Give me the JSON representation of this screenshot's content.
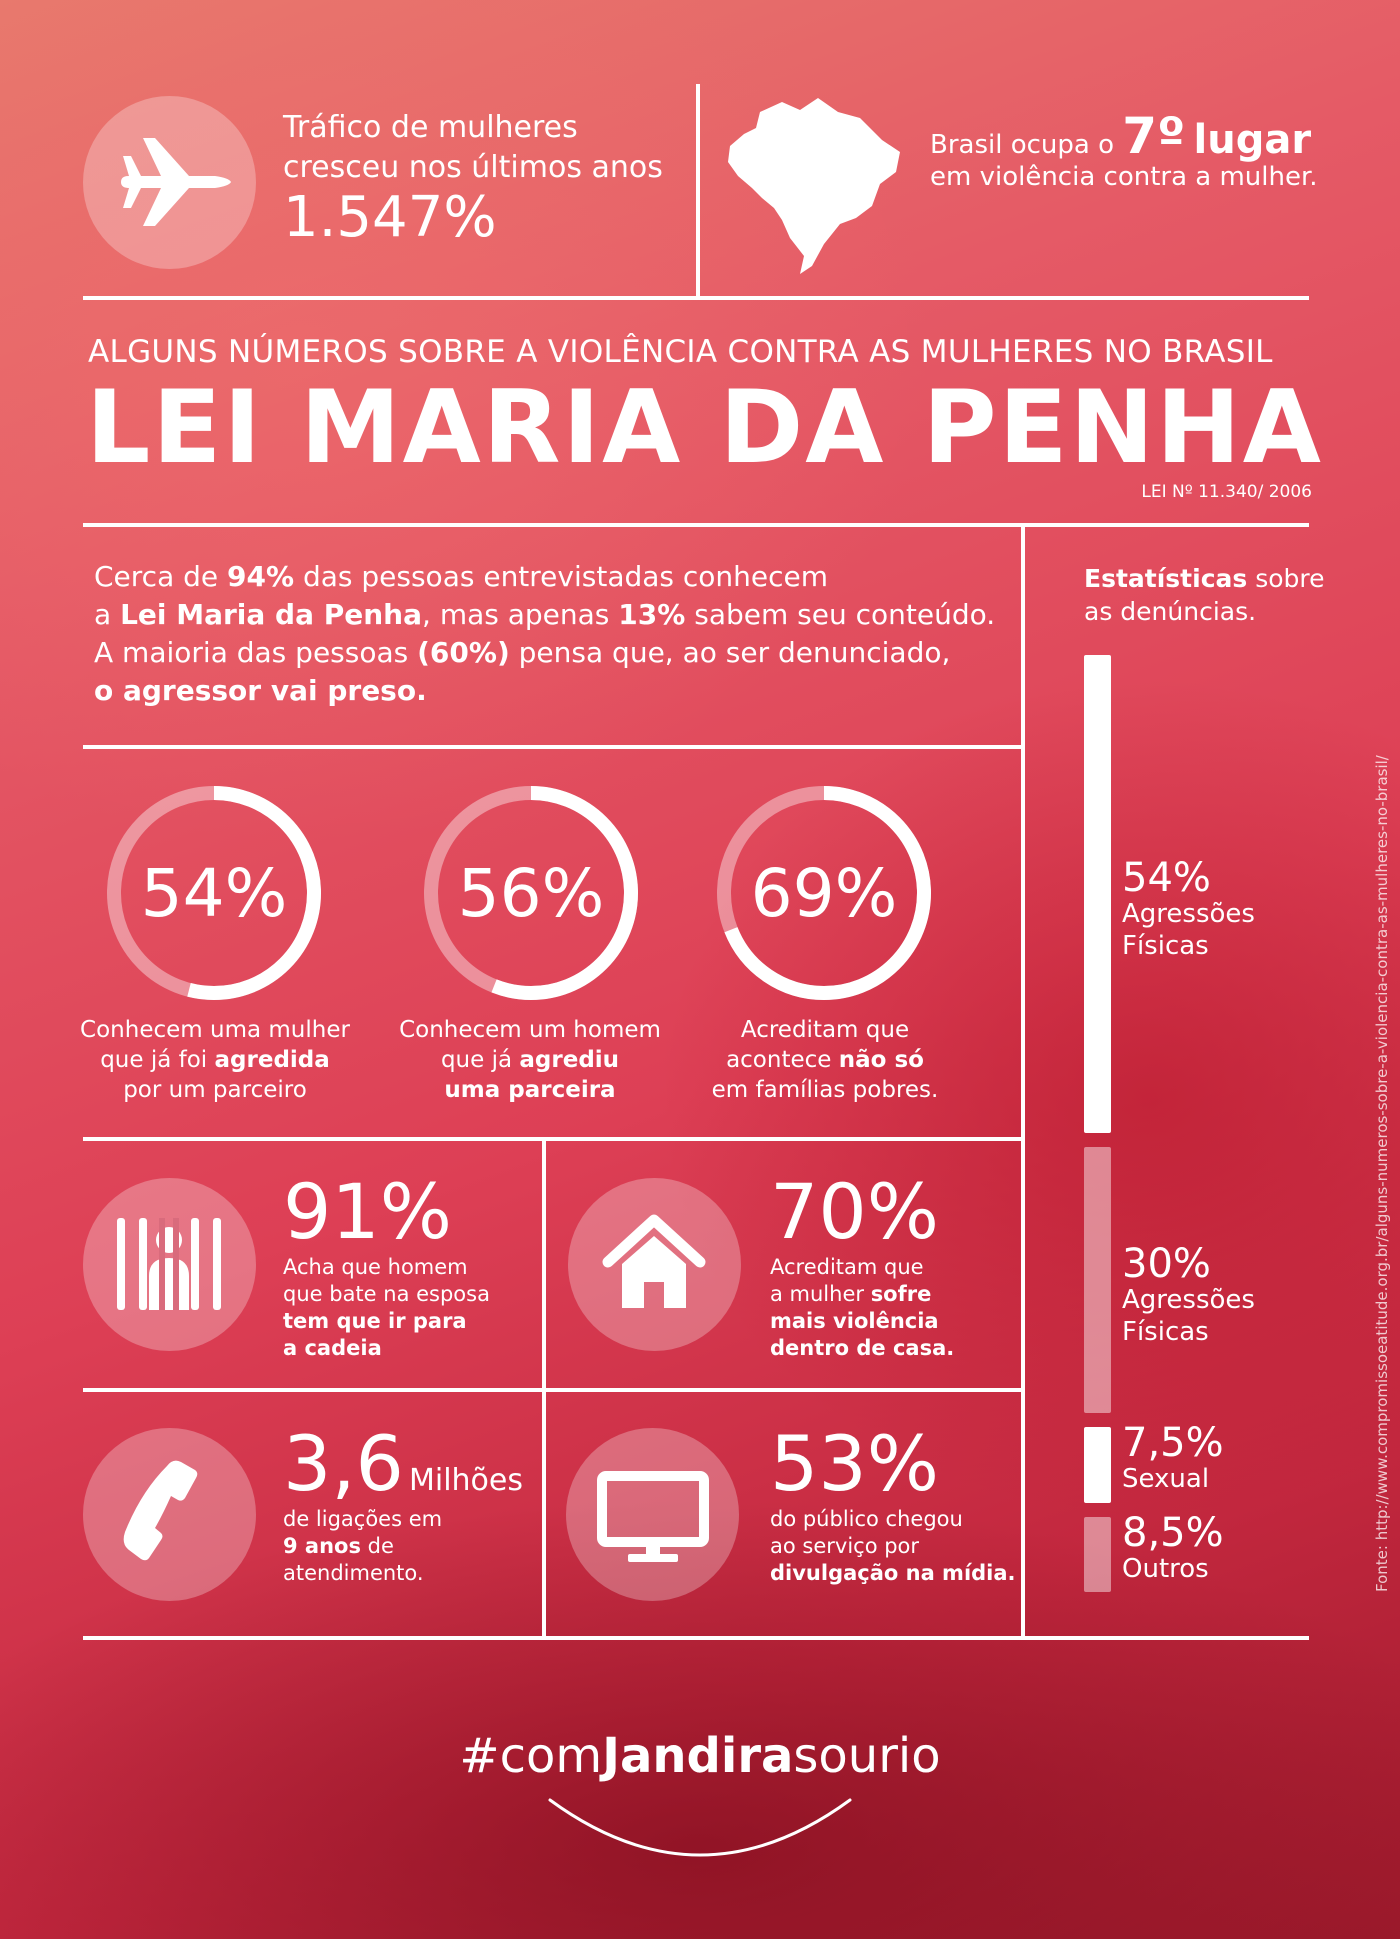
{
  "top": {
    "trafico_line1": "Tráfico de mulheres",
    "trafico_line2": "cresceu nos últimos anos",
    "trafico_value": "1.547%",
    "brasil_pre": "Brasil ocupa o",
    "brasil_rank": "7º",
    "brasil_word": "lugar",
    "brasil_line2": "em violência contra a mulher."
  },
  "header": {
    "subtitle": "ALGUNS NÚMEROS SOBRE A VIOLÊNCIA CONTRA AS MULHERES NO BRASIL",
    "title": "LEI MARIA DA PENHA",
    "law": "LEI Nº 11.340/ 2006"
  },
  "intro": {
    "l1a": "Cerca de ",
    "l1b": "94%",
    "l1c": " das pessoas entrevistadas conhecem",
    "l2a": "a ",
    "l2b": "Lei Maria da Penha",
    "l2c": ", mas apenas ",
    "l2d": "13%",
    "l2e": " sabem seu conteúdo.",
    "l3a": "A maioria das pessoas ",
    "l3b": "(60%)",
    "l3c": " pensa que, ao ser denunciado,",
    "l4": "o agressor vai preso."
  },
  "rings": [
    {
      "value": "54%",
      "fraction": 0.54,
      "c1": "Conhecem uma mulher",
      "c2a": "que já foi ",
      "c2b": "agredida",
      "c3": "por um parceiro"
    },
    {
      "value": "56%",
      "fraction": 0.56,
      "c1": "Conhecem um homem",
      "c2a": "que já ",
      "c2b": "agrediu",
      "c3": "uma parceira"
    },
    {
      "value": "69%",
      "fraction": 0.69,
      "c1": "Acreditam que",
      "c2a": "acontece ",
      "c2b": "não só",
      "c3": "em famílias pobres."
    }
  ],
  "tiles": {
    "jail": {
      "value": "91%",
      "l1": "Acha que homem",
      "l2": "que bate na esposa",
      "l3": "tem que ir para",
      "l4": "a cadeia"
    },
    "house": {
      "value": "70%",
      "l1": "Acreditam que",
      "l2a": "a mulher ",
      "l2b": "sofre",
      "l3": "mais violência",
      "l4": "dentro de casa."
    },
    "phone": {
      "value": "3,6",
      "unit": "Milhões",
      "l1": "de ligações em",
      "l2a": "9 anos",
      "l2b": " de",
      "l3": "atendimento."
    },
    "tv": {
      "value": "53%",
      "l1": "do público chegou",
      "l2": "ao serviço por",
      "l3": "divulgação na mídia."
    }
  },
  "stats": {
    "title_bold": "Estatísticas",
    "title_rest": " sobre",
    "title_line2": "as denúncias.",
    "items": [
      {
        "value": "54%",
        "label1": "Agressões",
        "label2": "Físicas",
        "share": 54
      },
      {
        "value": "30%",
        "label1": "Agressões",
        "label2": "Físicas",
        "share": 30
      },
      {
        "value": "7,5%",
        "label1": "Sexual",
        "label2": "",
        "share": 7.5
      },
      {
        "value": "8,5%",
        "label1": "Outros",
        "label2": "",
        "share": 8.5
      }
    ]
  },
  "source": "Fonte: http://www.compromissoeatitude.org.br/alguns-numeros-sobre-a-violencia-contra-as-mulheres-no-brasil/",
  "hashtag": {
    "pre": "#com",
    "bold": "Jandira",
    "post": "sourio"
  },
  "icons": [
    "airplane-icon",
    "brazil-map-icon",
    "jail-icon",
    "house-icon",
    "phone-icon",
    "monitor-icon"
  ]
}
